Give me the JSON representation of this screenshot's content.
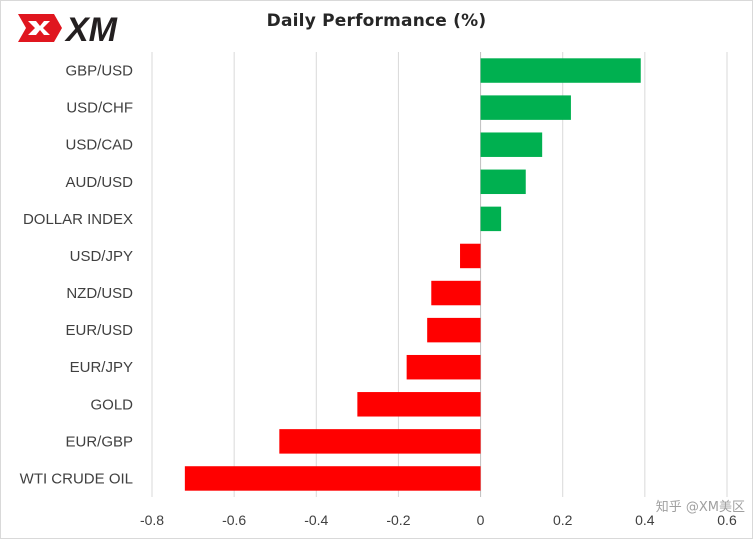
{
  "logo": {
    "text": "XM"
  },
  "watermark": "知乎 @XM美区",
  "colors": {
    "positive": "#00b050",
    "negative": "#ff0000",
    "grid": "#d9d9d9",
    "axis": "#bfbfbf",
    "logo_red": "#e0161f",
    "logo_dark": "#231f20"
  },
  "chart_data": {
    "type": "bar",
    "orientation": "horizontal",
    "title": "Daily Performance (%)",
    "xlabel": "",
    "ylabel": "",
    "xlim": [
      -0.8,
      0.6
    ],
    "xticks": [
      -0.8,
      -0.6,
      -0.4,
      -0.2,
      0,
      0.2,
      0.4,
      0.6
    ],
    "xtick_labels": [
      "-0.8",
      "-0.6",
      "-0.4",
      "-0.2",
      "0",
      "0.2",
      "0.4",
      "0.6"
    ],
    "grid": true,
    "categories": [
      "GBP/USD",
      "USD/CHF",
      "USD/CAD",
      "AUD/USD",
      "DOLLAR INDEX",
      "USD/JPY",
      "NZD/USD",
      "EUR/USD",
      "EUR/JPY",
      "GOLD",
      "EUR/GBP",
      "WTI CRUDE OIL"
    ],
    "values": [
      0.39,
      0.22,
      0.15,
      0.11,
      0.05,
      -0.05,
      -0.12,
      -0.13,
      -0.18,
      -0.3,
      -0.49,
      -0.72
    ]
  }
}
